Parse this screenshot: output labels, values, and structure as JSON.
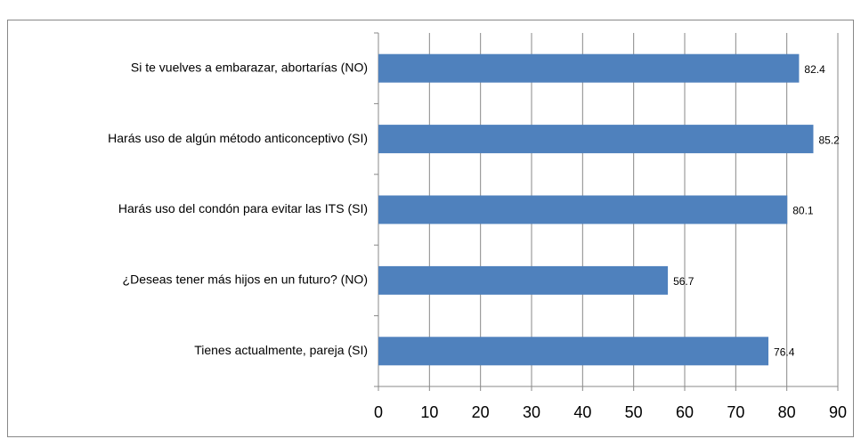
{
  "chart_data": {
    "type": "bar",
    "orientation": "horizontal",
    "categories": [
      "Si te vuelves a embarazar, abortarías (NO)",
      "Harás uso de algún método anticonceptivo (SI)",
      "Harás uso del condón para evitar las ITS (SI)",
      "¿Deseas tener más hijos en un futuro? (NO)",
      "Tienes actualmente, pareja  (SI)"
    ],
    "values": [
      82.4,
      85.2,
      80.1,
      56.7,
      76.4
    ],
    "color": "#4f81bd",
    "xlim": [
      0,
      90
    ],
    "xticks": [
      0,
      10,
      20,
      30,
      40,
      50,
      60,
      70,
      80,
      90
    ],
    "grid": true
  }
}
